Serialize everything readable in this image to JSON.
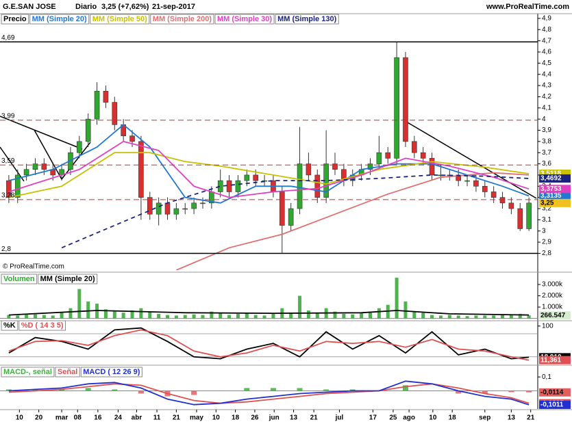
{
  "header": {
    "title": "G.E.SAN JOSE",
    "period": "Diario",
    "price": "3,25 (+7,62%)",
    "date": "21-sep-2017",
    "site": "www.ProRealTime.com",
    "copyright": "© ProRealTime.com"
  },
  "chart_data": [
    {
      "type": "candlestick",
      "xlim": [
        -1,
        60
      ],
      "ylim": [
        2.65,
        4.93
      ],
      "yticks": [
        {
          "value": 2.8,
          "label": "2,8"
        },
        {
          "value": 2.9,
          "label": "2,9"
        },
        3,
        {
          "value": 3.1,
          "label": "3,1"
        },
        {
          "value": 3.2,
          "label": "3,2"
        },
        {
          "value": 3.3,
          "label": "3,3"
        },
        {
          "value": 3.4,
          "label": "3,4"
        },
        {
          "value": 3.5,
          "label": "3,5"
        },
        {
          "value": 3.6,
          "label": "3,6"
        },
        {
          "value": 3.7,
          "label": "3,7"
        },
        {
          "value": 3.8,
          "label": "3,8"
        },
        {
          "value": 3.9,
          "label": "3,9"
        },
        4,
        {
          "value": 4.1,
          "label": "4,1"
        },
        {
          "value": 4.2,
          "label": "4,2"
        },
        {
          "value": 4.3,
          "label": "4,3"
        },
        {
          "value": 4.4,
          "label": "4,4"
        },
        {
          "value": 4.5,
          "label": "4,5"
        },
        {
          "value": 4.6,
          "label": "4,6"
        },
        {
          "value": 4.7,
          "label": "4,7"
        },
        {
          "value": 4.8,
          "label": "4,8"
        },
        {
          "value": 4.9,
          "label": "4,9"
        }
      ],
      "levels": [
        {
          "value": 4.69,
          "label": "4,69",
          "style": "solid"
        },
        {
          "value": 3.99,
          "label": "3,99",
          "style": "dashed"
        },
        {
          "value": 3.59,
          "label": "3,59",
          "style": "dashed"
        },
        {
          "value": 3.28,
          "label": "3,28",
          "style": "dashed"
        },
        {
          "value": 2.8,
          "label": "2,8",
          "style": "solid"
        }
      ],
      "candles": {
        "name": "Precio",
        "color": "#000000",
        "up_color": "#2fa82f",
        "down_color": "#d83030",
        "last_label": "3,25",
        "tag_color": "#f0c020",
        "x": [
          0,
          1,
          2,
          3,
          4,
          5,
          6,
          7,
          8,
          9,
          10,
          11,
          12,
          13,
          14,
          15,
          16,
          17,
          18,
          19,
          20,
          21,
          22,
          23,
          24,
          25,
          26,
          27,
          28,
          29,
          30,
          31,
          32,
          33,
          34,
          35,
          36,
          37,
          38,
          39,
          40,
          41,
          42,
          43,
          44,
          45,
          46,
          47,
          48,
          49,
          50,
          51,
          52,
          53,
          54,
          55,
          56,
          57,
          58,
          59
        ],
        "open": [
          3.45,
          3.3,
          3.5,
          3.55,
          3.6,
          3.55,
          3.5,
          3.55,
          3.7,
          3.8,
          4.0,
          4.25,
          4.15,
          3.95,
          3.85,
          3.8,
          3.3,
          3.15,
          3.25,
          3.15,
          3.2,
          3.2,
          3.25,
          3.25,
          3.35,
          3.45,
          3.35,
          3.45,
          3.5,
          3.45,
          3.45,
          3.35,
          3.05,
          3.2,
          3.6,
          3.5,
          3.3,
          3.6,
          3.55,
          3.45,
          3.5,
          3.55,
          3.6,
          3.7,
          3.65,
          4.55,
          3.8,
          3.7,
          3.65,
          3.5,
          3.5,
          3.5,
          3.45,
          3.45,
          3.4,
          3.35,
          3.3,
          3.25,
          3.2,
          3.02
        ],
        "high": [
          3.5,
          3.55,
          3.6,
          3.65,
          3.65,
          3.6,
          3.6,
          3.75,
          3.85,
          4.05,
          4.33,
          4.3,
          4.2,
          4.0,
          3.9,
          3.85,
          3.35,
          3.3,
          3.3,
          3.25,
          3.25,
          3.3,
          3.3,
          3.4,
          3.55,
          3.5,
          3.5,
          3.55,
          3.55,
          3.5,
          3.5,
          3.4,
          3.25,
          3.93,
          3.7,
          3.55,
          3.9,
          3.7,
          3.6,
          3.55,
          3.6,
          3.65,
          3.85,
          3.75,
          4.69,
          4.6,
          3.85,
          3.75,
          3.7,
          3.6,
          3.55,
          3.55,
          3.5,
          3.5,
          3.45,
          3.4,
          3.35,
          3.3,
          3.25,
          3.3
        ],
        "low": [
          3.25,
          3.25,
          3.45,
          3.5,
          3.5,
          3.45,
          3.45,
          3.5,
          3.65,
          3.75,
          3.95,
          4.1,
          3.9,
          3.8,
          3.75,
          3.1,
          3.1,
          3.05,
          3.1,
          3.1,
          3.15,
          3.15,
          3.2,
          3.2,
          3.3,
          3.3,
          3.3,
          3.4,
          3.4,
          3.4,
          3.3,
          2.8,
          3.0,
          3.15,
          3.45,
          3.25,
          3.25,
          3.5,
          3.4,
          3.4,
          3.45,
          3.5,
          3.55,
          3.6,
          3.6,
          3.75,
          3.65,
          3.6,
          3.45,
          3.45,
          3.45,
          3.4,
          3.4,
          3.35,
          3.3,
          3.25,
          3.2,
          3.15,
          3.0,
          3.0
        ],
        "close": [
          3.3,
          3.5,
          3.55,
          3.6,
          3.55,
          3.5,
          3.55,
          3.7,
          3.8,
          4.0,
          4.25,
          4.15,
          3.95,
          3.85,
          3.8,
          3.3,
          3.15,
          3.25,
          3.15,
          3.2,
          3.2,
          3.25,
          3.25,
          3.35,
          3.45,
          3.35,
          3.45,
          3.5,
          3.45,
          3.45,
          3.35,
          3.05,
          3.2,
          3.6,
          3.5,
          3.3,
          3.6,
          3.55,
          3.45,
          3.5,
          3.55,
          3.6,
          3.7,
          3.65,
          4.55,
          3.8,
          3.7,
          3.65,
          3.5,
          3.5,
          3.5,
          3.45,
          3.45,
          3.4,
          3.35,
          3.3,
          3.25,
          3.2,
          3.02,
          3.25
        ]
      },
      "series": [
        {
          "name": "MM (Simple 20)",
          "color": "#1f78d1",
          "x": [
            0,
            5,
            10,
            13,
            16,
            20,
            24,
            28,
            32,
            36,
            40,
            44,
            48,
            52,
            56,
            59
          ],
          "values": [
            3.45,
            3.55,
            3.75,
            3.95,
            3.75,
            3.3,
            3.25,
            3.4,
            3.4,
            3.35,
            3.55,
            3.6,
            3.6,
            3.5,
            3.4,
            3.3135
          ],
          "last_label": "3,3135"
        },
        {
          "name": "MM (Simple 50)",
          "color": "#c8c000",
          "x": [
            0,
            6,
            12,
            16,
            20,
            24,
            30,
            36,
            42,
            48,
            54,
            59
          ],
          "values": [
            3.3,
            3.4,
            3.7,
            3.7,
            3.62,
            3.58,
            3.5,
            3.42,
            3.55,
            3.62,
            3.57,
            3.5118
          ],
          "last_label": "3,5118"
        },
        {
          "name": "MM (Simple 200)",
          "color": "#e07070",
          "x": [
            19,
            25,
            31,
            37,
            43,
            49,
            55,
            59
          ],
          "values": [
            2.65,
            2.85,
            2.97,
            3.15,
            3.33,
            3.48,
            3.52,
            3.5
          ]
        },
        {
          "name": "MM (Simple 30)",
          "color": "#e040c0",
          "x": [
            0,
            8,
            13,
            17,
            21,
            25,
            30,
            35,
            40,
            45,
            50,
            55,
            59
          ],
          "values": [
            3.35,
            3.55,
            3.8,
            3.72,
            3.4,
            3.3,
            3.35,
            3.38,
            3.5,
            3.65,
            3.58,
            3.48,
            3.3753
          ],
          "last_label": "3,3753"
        },
        {
          "name": "MM (Simple 130)",
          "color": "#1a237e",
          "dashed": true,
          "x": [
            6,
            12,
            18,
            24,
            30,
            36,
            42,
            48,
            54,
            59
          ],
          "values": [
            2.85,
            3.05,
            3.25,
            3.4,
            3.45,
            3.45,
            3.47,
            3.5,
            3.49,
            3.4692
          ],
          "last_label": "3,4692"
        }
      ]
    },
    {
      "type": "bar",
      "xlim": [
        -1,
        60
      ],
      "ylim": [
        -150,
        3970
      ],
      "yticks": [
        {
          "value": 1000,
          "label": "1.000k"
        },
        {
          "value": 2000,
          "label": "2.000k"
        },
        {
          "value": 3000,
          "label": "3.000k"
        }
      ],
      "bars": {
        "name": "Volumen",
        "color": "#2fa82f",
        "down_color": "#d83030",
        "last_label": "266.547",
        "tag_color": "#d8ecd0",
        "x": [
          0,
          1,
          2,
          3,
          4,
          5,
          6,
          7,
          8,
          9,
          10,
          11,
          12,
          13,
          14,
          15,
          16,
          17,
          18,
          19,
          20,
          21,
          22,
          23,
          24,
          25,
          26,
          27,
          28,
          29,
          30,
          31,
          32,
          33,
          34,
          35,
          36,
          37,
          38,
          39,
          40,
          41,
          42,
          43,
          44,
          45,
          46,
          47,
          48,
          49,
          50,
          51,
          52,
          53,
          54,
          55,
          56,
          57,
          58,
          59
        ],
        "values": [
          300,
          250,
          400,
          350,
          300,
          250,
          500,
          900,
          2600,
          1500,
          1300,
          800,
          600,
          500,
          700,
          900,
          600,
          400,
          300,
          250,
          300,
          350,
          300,
          600,
          500,
          300,
          400,
          450,
          300,
          250,
          400,
          900,
          500,
          2000,
          700,
          500,
          900,
          600,
          400,
          350,
          500,
          600,
          900,
          1200,
          3600,
          1500,
          600,
          500,
          300,
          250,
          300,
          250,
          200,
          250,
          250,
          250,
          300,
          350,
          400,
          266.547
        ]
      },
      "series": [
        {
          "name": "MM (Simple 20)",
          "color": "#000000",
          "x": [
            0,
            10,
            20,
            30,
            40,
            44,
            50,
            59
          ],
          "values": [
            300,
            700,
            500,
            450,
            500,
            700,
            400,
            300
          ]
        }
      ]
    },
    {
      "type": "line",
      "xlim": [
        -1,
        60
      ],
      "ylim": [
        0,
        112
      ],
      "yticks": [
        100
      ],
      "hlines": [
        80,
        20
      ],
      "series": [
        {
          "name": "%K",
          "color": "#000000",
          "x": [
            0,
            3,
            6,
            9,
            12,
            15,
            18,
            21,
            24,
            27,
            30,
            33,
            36,
            39,
            42,
            45,
            48,
            51,
            54,
            57,
            59
          ],
          "values": [
            30,
            70,
            60,
            40,
            90,
            95,
            60,
            20,
            15,
            40,
            55,
            20,
            85,
            40,
            75,
            30,
            85,
            25,
            40,
            15,
            18.91
          ],
          "last_label": "18,910"
        },
        {
          "name": "%D ( 14 3 5)",
          "color": "#e05050",
          "x": [
            0,
            3,
            6,
            9,
            12,
            15,
            18,
            21,
            24,
            27,
            30,
            33,
            36,
            39,
            42,
            45,
            48,
            51,
            54,
            57,
            59
          ],
          "values": [
            35,
            60,
            62,
            50,
            75,
            90,
            75,
            35,
            20,
            30,
            50,
            35,
            60,
            55,
            60,
            45,
            65,
            40,
            35,
            20,
            11.361
          ],
          "last_label": "11,361"
        }
      ]
    },
    {
      "type": "bar",
      "xlim": [
        -1,
        60
      ],
      "ylim": [
        -0.131,
        0.175
      ],
      "yticks": [
        {
          "value": 0.1,
          "label": "0,1"
        }
      ],
      "bars": {
        "name": "MACD-, señal",
        "color": "#3fb03f",
        "down_color": "#e06060",
        "last_label": "-0,0114",
        "tag_color": "#e06060",
        "x": [
          0,
          3,
          6,
          9,
          12,
          15,
          18,
          21,
          24,
          27,
          30,
          33,
          36,
          39,
          42,
          45,
          48,
          51,
          54,
          57,
          59
        ],
        "values": [
          0.01,
          0.01,
          0.01,
          0.02,
          0.01,
          -0.02,
          -0.04,
          -0.03,
          0.0,
          0.02,
          0.02,
          0.02,
          0.01,
          0.01,
          0.0,
          0.04,
          0.0,
          -0.02,
          -0.02,
          -0.01,
          -0.0114
        ]
      },
      "series": [
        {
          "name": "Señal",
          "color": "#e05050",
          "x": [
            0,
            3,
            6,
            9,
            12,
            15,
            18,
            21,
            24,
            27,
            30,
            33,
            36,
            39,
            42,
            45,
            48,
            51,
            54,
            57,
            59
          ],
          "values": [
            -0.01,
            0.0,
            0.01,
            0.03,
            0.05,
            0.04,
            -0.02,
            -0.07,
            -0.09,
            -0.08,
            -0.06,
            -0.04,
            -0.02,
            -0.01,
            0.0,
            0.03,
            0.05,
            0.02,
            -0.02,
            -0.05,
            -0.0897
          ],
          "last_label": "-0,0897"
        },
        {
          "name": "MACD ( 12 26 9)",
          "color": "#2030d0",
          "x": [
            0,
            3,
            6,
            9,
            12,
            15,
            18,
            21,
            24,
            27,
            30,
            33,
            36,
            39,
            42,
            45,
            48,
            51,
            54,
            57,
            59
          ],
          "values": [
            0.0,
            0.01,
            0.02,
            0.05,
            0.06,
            0.02,
            -0.06,
            -0.1,
            -0.09,
            -0.06,
            -0.04,
            -0.02,
            -0.01,
            0.0,
            0.0,
            0.07,
            0.05,
            0.0,
            -0.04,
            -0.06,
            -0.1011
          ],
          "last_label": "-0,1011"
        }
      ],
      "xticks": [
        {
          "value": 1.2,
          "label": "10"
        },
        {
          "value": 3.4,
          "label": "20"
        },
        {
          "value": 6.0,
          "label": "mar"
        },
        {
          "value": 7.8,
          "label": "08"
        },
        {
          "value": 10.1,
          "label": "16"
        },
        {
          "value": 12.4,
          "label": "24"
        },
        {
          "value": 14.5,
          "label": "abr"
        },
        {
          "value": 16.8,
          "label": "11"
        },
        {
          "value": 19.0,
          "label": "21"
        },
        {
          "value": 21.3,
          "label": "may"
        },
        {
          "value": 23.5,
          "label": "10"
        },
        {
          "value": 25.7,
          "label": "18"
        },
        {
          "value": 27.9,
          "label": "26"
        },
        {
          "value": 30.1,
          "label": "jun"
        },
        {
          "value": 32.3,
          "label": "13"
        },
        {
          "value": 34.6,
          "label": "21"
        },
        {
          "value": 37.5,
          "label": "jul"
        },
        {
          "value": 41.3,
          "label": "17"
        },
        {
          "value": 43.6,
          "label": "25"
        },
        {
          "value": 45.4,
          "label": "ago"
        },
        {
          "value": 48.1,
          "label": "10"
        },
        {
          "value": 50.3,
          "label": "18"
        },
        {
          "value": 54.0,
          "label": "sep"
        },
        {
          "value": 57.0,
          "label": "13"
        },
        {
          "value": 59.2,
          "label": "21"
        }
      ]
    }
  ]
}
